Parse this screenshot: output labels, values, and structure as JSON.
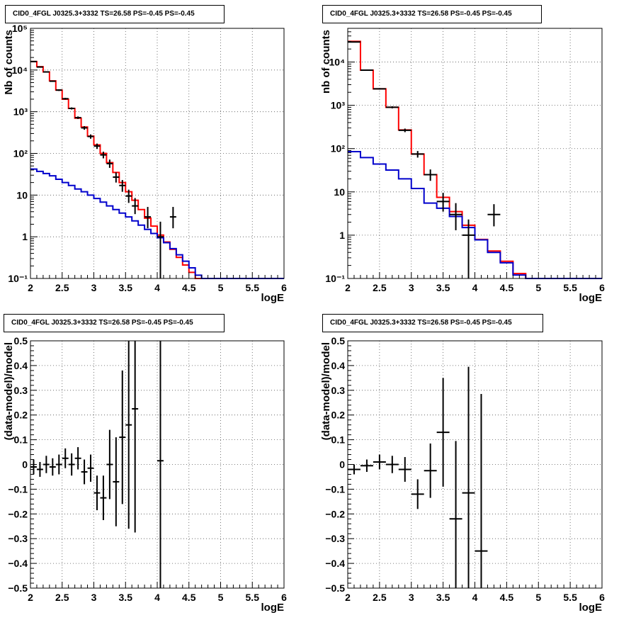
{
  "colors": {
    "data": "#000000",
    "model": "#ff0000",
    "background": "#0000cc",
    "grid": "#555555"
  },
  "chart_data": [
    {
      "type": "line",
      "panel": "top-left",
      "title": "CID0_4FGL J0325.3+3332 TS=26.58 PS=-0.45 PS=-0.45",
      "xlabel": "logE",
      "ylabel": "Nb of counts",
      "xlim": [
        2,
        6
      ],
      "ylim": [
        0.1,
        100000
      ],
      "log_y": true,
      "grid": true,
      "x_ticks": [
        "2",
        "2.5",
        "3",
        "3.5",
        "4",
        "4.5",
        "5",
        "5.5",
        "6"
      ],
      "y_ticks": [
        {
          "value": 0.1,
          "label": "10⁻¹"
        },
        {
          "value": 1,
          "label": "1"
        },
        {
          "value": 10,
          "label": "10"
        },
        {
          "value": 100,
          "label": "10²"
        },
        {
          "value": 1000,
          "label": "10³"
        },
        {
          "value": 10000,
          "label": "10⁴"
        },
        {
          "value": 100000,
          "label": "10⁵"
        }
      ],
      "bin_edges": [
        2,
        2.1,
        2.2,
        2.3,
        2.4,
        2.5,
        2.6,
        2.7,
        2.8,
        2.9,
        3,
        3.1,
        3.2,
        3.3,
        3.4,
        3.5,
        3.6,
        3.7,
        3.8,
        3.9,
        4,
        4.1,
        4.2,
        4.3,
        4.4,
        4.5,
        4.6,
        4.7,
        4.8,
        4.9,
        5,
        5.1,
        5.2,
        5.3,
        5.4,
        5.5,
        5.6,
        5.7,
        5.8,
        5.9,
        6
      ],
      "series": [
        {
          "role": "model",
          "values": [
            16000,
            12000,
            9000,
            5500,
            3300,
            2000,
            1200,
            700,
            430,
            260,
            160,
            100,
            60,
            35,
            20,
            12,
            7.5,
            4.5,
            2.8,
            1.8,
            1.1,
            0.75,
            0.5,
            0.32,
            0.21,
            0.14,
            0.1,
            0.1,
            0.1,
            0.1,
            0.1,
            0.1,
            0.1,
            0.1,
            0.1,
            0.1,
            0.1,
            0.1,
            0.1,
            0.1
          ]
        },
        {
          "role": "background",
          "values": [
            42,
            37,
            33,
            29,
            24,
            20,
            17,
            14,
            12,
            10,
            8.3,
            6.8,
            5.5,
            4.5,
            3.7,
            3.0,
            2.4,
            1.9,
            1.5,
            1.2,
            0.95,
            0.72,
            0.52,
            0.37,
            0.26,
            0.18,
            0.12,
            0.1,
            0.1,
            0.1,
            0.1,
            0.1,
            0.1,
            0.1,
            0.1,
            0.1,
            0.1,
            0.1,
            0.1,
            0.1
          ]
        }
      ],
      "points": [
        {
          "x": 2.05,
          "y": 16000,
          "lo": 15600,
          "hi": 16400
        },
        {
          "x": 2.15,
          "y": 11800,
          "lo": 11500,
          "hi": 12100
        },
        {
          "x": 2.25,
          "y": 9000,
          "lo": 8700,
          "hi": 9300
        },
        {
          "x": 2.35,
          "y": 5400,
          "lo": 5200,
          "hi": 5600
        },
        {
          "x": 2.45,
          "y": 3300,
          "lo": 3150,
          "hi": 3450
        },
        {
          "x": 2.55,
          "y": 2050,
          "lo": 1950,
          "hi": 2150
        },
        {
          "x": 2.65,
          "y": 1200,
          "lo": 1130,
          "hi": 1270
        },
        {
          "x": 2.75,
          "y": 720,
          "lo": 670,
          "hi": 770
        },
        {
          "x": 2.85,
          "y": 410,
          "lo": 370,
          "hi": 450
        },
        {
          "x": 2.95,
          "y": 255,
          "lo": 225,
          "hi": 285
        },
        {
          "x": 3.05,
          "y": 150,
          "lo": 128,
          "hi": 172
        },
        {
          "x": 3.15,
          "y": 92,
          "lo": 76,
          "hi": 110
        },
        {
          "x": 3.25,
          "y": 57,
          "lo": 45,
          "hi": 71
        },
        {
          "x": 3.35,
          "y": 27,
          "lo": 20,
          "hi": 35
        },
        {
          "x": 3.45,
          "y": 17,
          "lo": 12,
          "hi": 23
        },
        {
          "x": 3.55,
          "y": 9.5,
          "lo": 6.5,
          "hi": 13.5
        },
        {
          "x": 3.65,
          "y": 5.5,
          "lo": 3.5,
          "hi": 8.5
        },
        {
          "x": 3.85,
          "y": 3,
          "lo": 1.6,
          "hi": 5.2
        },
        {
          "x": 4.05,
          "y": 1,
          "lo": 0.1,
          "hi": 2.3
        },
        {
          "x": 4.25,
          "y": 3,
          "lo": 1.6,
          "hi": 5.2
        }
      ]
    },
    {
      "type": "line",
      "panel": "top-right",
      "title": "CID0_4FGL J0325.3+3332 TS=26.58 PS=-0.45 PS=-0.45",
      "xlabel": "logE",
      "ylabel": "nb of counts",
      "xlim": [
        2,
        6
      ],
      "ylim": [
        0.1,
        60000
      ],
      "log_y": true,
      "grid": true,
      "x_ticks": [
        "2",
        "2.5",
        "3",
        "3.5",
        "4",
        "4.5",
        "5",
        "5.5",
        "6"
      ],
      "y_ticks": [
        {
          "value": 0.1,
          "label": "10⁻¹"
        },
        {
          "value": 1,
          "label": "1"
        },
        {
          "value": 10,
          "label": "10"
        },
        {
          "value": 100,
          "label": "10²"
        },
        {
          "value": 1000,
          "label": "10³"
        },
        {
          "value": 10000,
          "label": "10⁴"
        }
      ],
      "bin_edges": [
        2,
        2.2,
        2.4,
        2.6,
        2.8,
        3,
        3.2,
        3.4,
        3.6,
        3.8,
        4,
        4.2,
        4.4,
        4.6,
        4.8,
        5,
        5.2,
        5.4,
        5.6,
        5.8,
        6
      ],
      "series": [
        {
          "role": "model",
          "values": [
            30000,
            6500,
            2400,
            900,
            270,
            75,
            25,
            7.5,
            3.5,
            1.7,
            0.8,
            0.43,
            0.25,
            0.13,
            0.1,
            0.1,
            0.1,
            0.1,
            0.1,
            0.1
          ]
        },
        {
          "role": "background",
          "values": [
            85,
            62,
            44,
            32,
            20,
            12,
            5.5,
            4.2,
            2.7,
            1.5,
            0.78,
            0.4,
            0.23,
            0.12,
            0.1,
            0.1,
            0.1,
            0.1,
            0.1,
            0.1
          ]
        }
      ],
      "points": [
        {
          "x": 2.1,
          "y": 29000,
          "lo": 28500,
          "hi": 29500
        },
        {
          "x": 2.3,
          "y": 6500,
          "lo": 6350,
          "hi": 6650
        },
        {
          "x": 2.5,
          "y": 2400,
          "lo": 2310,
          "hi": 2490
        },
        {
          "x": 2.7,
          "y": 900,
          "lo": 850,
          "hi": 950
        },
        {
          "x": 2.9,
          "y": 265,
          "lo": 240,
          "hi": 290
        },
        {
          "x": 3.1,
          "y": 75,
          "lo": 62,
          "hi": 88
        },
        {
          "x": 3.3,
          "y": 25,
          "lo": 18,
          "hi": 33
        },
        {
          "x": 3.5,
          "y": 6,
          "lo": 3.5,
          "hi": 9.5
        },
        {
          "x": 3.7,
          "y": 3,
          "lo": 1.3,
          "hi": 5.5
        },
        {
          "x": 3.9,
          "y": 1,
          "lo": 0.1,
          "hi": 2.3
        },
        {
          "x": 4.3,
          "y": 3,
          "lo": 1.6,
          "hi": 5.2
        }
      ]
    },
    {
      "type": "scatter",
      "panel": "bottom-left",
      "title": "CID0_4FGL J0325.3+3332 TS=26.58 PS=-0.45 PS=-0.45",
      "xlabel": "logE",
      "ylabel": "(data-model)/model",
      "xlim": [
        2,
        6
      ],
      "ylim": [
        -0.5,
        0.5
      ],
      "log_y": false,
      "grid": true,
      "x_ticks": [
        "2",
        "2.5",
        "3",
        "3.5",
        "4",
        "4.5",
        "5",
        "5.5",
        "6"
      ],
      "y_ticks": [
        {
          "value": -0.5,
          "label": "−0.5"
        },
        {
          "value": -0.4,
          "label": "−0.4"
        },
        {
          "value": -0.3,
          "label": "−0.3"
        },
        {
          "value": -0.2,
          "label": "−0.2"
        },
        {
          "value": -0.1,
          "label": "−0.1"
        },
        {
          "value": 0,
          "label": "0"
        },
        {
          "value": 0.1,
          "label": "0.1"
        },
        {
          "value": 0.2,
          "label": "0.2"
        },
        {
          "value": 0.3,
          "label": "0.3"
        },
        {
          "value": 0.4,
          "label": "0.4"
        },
        {
          "value": 0.5,
          "label": "0.5"
        }
      ],
      "half_width": 0.05,
      "points": [
        {
          "x": 2.05,
          "y": -0.01,
          "err": 0.03
        },
        {
          "x": 2.15,
          "y": -0.02,
          "err": 0.03
        },
        {
          "x": 2.25,
          "y": 0.0,
          "err": 0.035
        },
        {
          "x": 2.35,
          "y": -0.01,
          "err": 0.035
        },
        {
          "x": 2.45,
          "y": 0.0,
          "err": 0.04
        },
        {
          "x": 2.55,
          "y": 0.025,
          "err": 0.04
        },
        {
          "x": 2.65,
          "y": 0.0,
          "err": 0.045
        },
        {
          "x": 2.75,
          "y": 0.025,
          "err": 0.045
        },
        {
          "x": 2.85,
          "y": -0.03,
          "err": 0.05
        },
        {
          "x": 2.95,
          "y": -0.015,
          "err": 0.055
        },
        {
          "x": 3.05,
          "y": -0.115,
          "err": 0.07
        },
        {
          "x": 3.15,
          "y": -0.135,
          "err": 0.09
        },
        {
          "x": 3.25,
          "y": 0.0,
          "err": 0.14
        },
        {
          "x": 3.35,
          "y": -0.07,
          "err": 0.18
        },
        {
          "x": 3.45,
          "y": 0.11,
          "err": 0.27
        },
        {
          "x": 3.55,
          "y": 0.16,
          "err": 0.42
        },
        {
          "x": 3.65,
          "y": 0.225,
          "err": 0.5
        },
        {
          "x": 4.05,
          "y": 0.015,
          "err": 1.0
        }
      ]
    },
    {
      "type": "scatter",
      "panel": "bottom-right",
      "title": "CID0_4FGL J0325.3+3332 TS=26.58 PS=-0.45 PS=-0.45",
      "xlabel": "logE",
      "ylabel": "(data-model)/model",
      "xlim": [
        2,
        6
      ],
      "ylim": [
        -0.5,
        0.5
      ],
      "log_y": false,
      "grid": true,
      "x_ticks": [
        "2",
        "2.5",
        "3",
        "3.5",
        "4",
        "4.5",
        "5",
        "5.5",
        "6"
      ],
      "y_ticks": [
        {
          "value": -0.5,
          "label": "−0.5"
        },
        {
          "value": -0.4,
          "label": "−0.4"
        },
        {
          "value": -0.3,
          "label": "−0.3"
        },
        {
          "value": -0.2,
          "label": "−0.2"
        },
        {
          "value": -0.1,
          "label": "−0.1"
        },
        {
          "value": 0,
          "label": "0"
        },
        {
          "value": 0.1,
          "label": "0.1"
        },
        {
          "value": 0.2,
          "label": "0.2"
        },
        {
          "value": 0.3,
          "label": "0.3"
        },
        {
          "value": 0.4,
          "label": "0.4"
        },
        {
          "value": 0.5,
          "label": "0.5"
        }
      ],
      "half_width": 0.1,
      "points": [
        {
          "x": 2.1,
          "y": -0.02,
          "err": 0.02
        },
        {
          "x": 2.3,
          "y": -0.005,
          "err": 0.025
        },
        {
          "x": 2.5,
          "y": 0.01,
          "err": 0.03
        },
        {
          "x": 2.7,
          "y": 0.0,
          "err": 0.035
        },
        {
          "x": 2.9,
          "y": -0.02,
          "err": 0.05
        },
        {
          "x": 3.1,
          "y": -0.12,
          "err": 0.06
        },
        {
          "x": 3.3,
          "y": -0.025,
          "err": 0.11
        },
        {
          "x": 3.5,
          "y": 0.13,
          "err": 0.22
        },
        {
          "x": 3.7,
          "y": -0.22,
          "err": 0.315
        },
        {
          "x": 3.9,
          "y": -0.115,
          "err": 0.51
        },
        {
          "x": 4.1,
          "y": -0.35,
          "err": 0.635
        }
      ]
    }
  ]
}
